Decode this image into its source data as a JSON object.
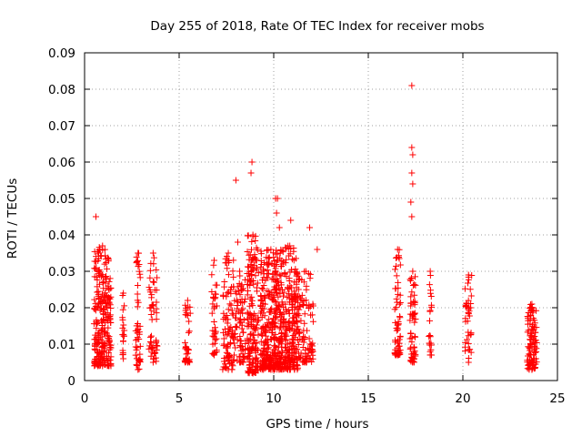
{
  "chart_data": {
    "type": "scatter",
    "title": "Day 255 of 2018, Rate Of TEC Index for receiver mobs",
    "xlabel": "GPS time / hours",
    "ylabel": "ROTI / TECUs",
    "xlim": [
      0,
      25
    ],
    "ylim": [
      0,
      0.09
    ],
    "xticks": [
      0,
      5,
      10,
      15,
      20,
      25
    ],
    "xtick_labels": [
      "0",
      "5",
      "10",
      "15",
      "20",
      "25"
    ],
    "yticks": [
      0,
      0.01,
      0.02,
      0.03,
      0.04,
      0.05,
      0.06,
      0.07,
      0.08,
      0.09
    ],
    "ytick_labels": [
      "0",
      "0.01",
      "0.02",
      "0.03",
      "0.04",
      "0.05",
      "0.06",
      "0.07",
      "0.08",
      "0.09"
    ],
    "grid": true,
    "marker": "+",
    "series_color": "#ff0000",
    "clusters": [
      {
        "x": [
          0.5,
          1.4
        ],
        "ymin": 0.004,
        "ymax": 0.037,
        "count": 260
      },
      {
        "x": [
          2.0,
          2.1
        ],
        "ymin": 0.006,
        "ymax": 0.024,
        "count": 18
      },
      {
        "x": [
          2.7,
          2.95
        ],
        "ymin": 0.003,
        "ymax": 0.035,
        "count": 45
      },
      {
        "x": [
          3.4,
          3.85
        ],
        "ymin": 0.005,
        "ymax": 0.035,
        "count": 55
      },
      {
        "x": [
          5.3,
          5.6
        ],
        "ymin": 0.005,
        "ymax": 0.022,
        "count": 40
      },
      {
        "x": [
          6.7,
          7.0
        ],
        "ymin": 0.007,
        "ymax": 0.033,
        "count": 35
      },
      {
        "x": [
          7.3,
          7.9
        ],
        "ymin": 0.003,
        "ymax": 0.035,
        "count": 90
      },
      {
        "x": [
          7.9,
          8.5
        ],
        "ymin": 0.005,
        "ymax": 0.03,
        "count": 70
      },
      {
        "x": [
          8.6,
          9.2
        ],
        "ymin": 0.002,
        "ymax": 0.04,
        "count": 170
      },
      {
        "x": [
          9.3,
          10.4
        ],
        "ymin": 0.003,
        "ymax": 0.036,
        "count": 330
      },
      {
        "x": [
          10.4,
          11.3
        ],
        "ymin": 0.003,
        "ymax": 0.037,
        "count": 240
      },
      {
        "x": [
          11.3,
          12.1
        ],
        "ymin": 0.005,
        "ymax": 0.03,
        "count": 90
      },
      {
        "x": [
          16.4,
          16.7
        ],
        "ymin": 0.007,
        "ymax": 0.036,
        "count": 60
      },
      {
        "x": [
          17.2,
          17.5
        ],
        "ymin": 0.005,
        "ymax": 0.03,
        "count": 60
      },
      {
        "x": [
          18.2,
          18.35
        ],
        "ymin": 0.007,
        "ymax": 0.03,
        "count": 22
      },
      {
        "x": [
          20.1,
          20.5
        ],
        "ymin": 0.005,
        "ymax": 0.029,
        "count": 40
      },
      {
        "x": [
          23.4,
          23.9
        ],
        "ymin": 0.003,
        "ymax": 0.021,
        "count": 110
      }
    ],
    "notable_points": [
      {
        "x": 0.6,
        "y": 0.045
      },
      {
        "x": 8.0,
        "y": 0.055
      },
      {
        "x": 8.1,
        "y": 0.038
      },
      {
        "x": 8.8,
        "y": 0.057
      },
      {
        "x": 8.85,
        "y": 0.06
      },
      {
        "x": 10.1,
        "y": 0.05
      },
      {
        "x": 10.2,
        "y": 0.05
      },
      {
        "x": 10.15,
        "y": 0.046
      },
      {
        "x": 10.3,
        "y": 0.042
      },
      {
        "x": 10.9,
        "y": 0.044
      },
      {
        "x": 11.9,
        "y": 0.042
      },
      {
        "x": 12.3,
        "y": 0.036
      },
      {
        "x": 17.3,
        "y": 0.081
      },
      {
        "x": 17.3,
        "y": 0.064
      },
      {
        "x": 17.35,
        "y": 0.062
      },
      {
        "x": 17.3,
        "y": 0.057
      },
      {
        "x": 17.35,
        "y": 0.054
      },
      {
        "x": 17.25,
        "y": 0.049
      },
      {
        "x": 17.3,
        "y": 0.045
      }
    ]
  }
}
